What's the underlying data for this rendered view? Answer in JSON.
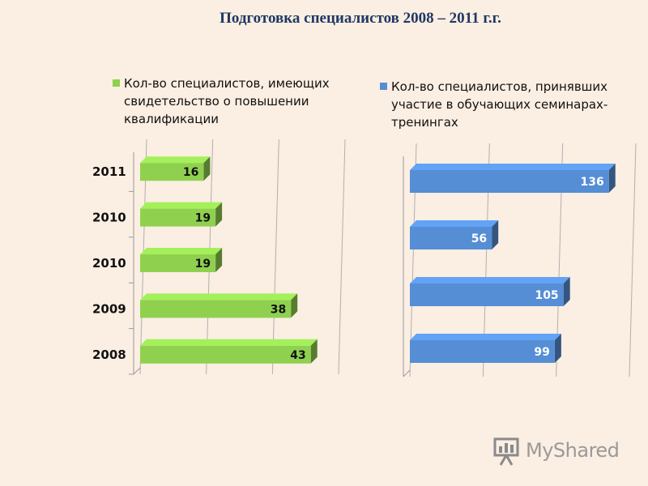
{
  "title": "Подготовка специалистов 2008 – 2011 г.г.",
  "chart_data": [
    {
      "type": "bar",
      "orientation": "horizontal",
      "categories": [
        "2008",
        "2009",
        "2010",
        "2010",
        "2011"
      ],
      "series": [
        {
          "name": "Кол-во специалистов, имеющих свидетельство о повышении квалификации",
          "values": [
            43,
            38,
            19,
            19,
            16
          ],
          "color": "#8fd14f"
        }
      ],
      "xlim": [
        0,
        50
      ],
      "grid": true,
      "legend": "top"
    },
    {
      "type": "bar",
      "orientation": "horizontal",
      "categories": [
        "",
        "",
        "",
        ""
      ],
      "series": [
        {
          "name": "Кол-во специалистов, принявших участие в обучающих семинарах-тренингах",
          "values": [
            99,
            105,
            56,
            136
          ],
          "color": "#558ed5"
        }
      ],
      "xlim": [
        0,
        150
      ],
      "grid": true,
      "legend": "top"
    }
  ],
  "logo": {
    "text": "MyShared"
  }
}
